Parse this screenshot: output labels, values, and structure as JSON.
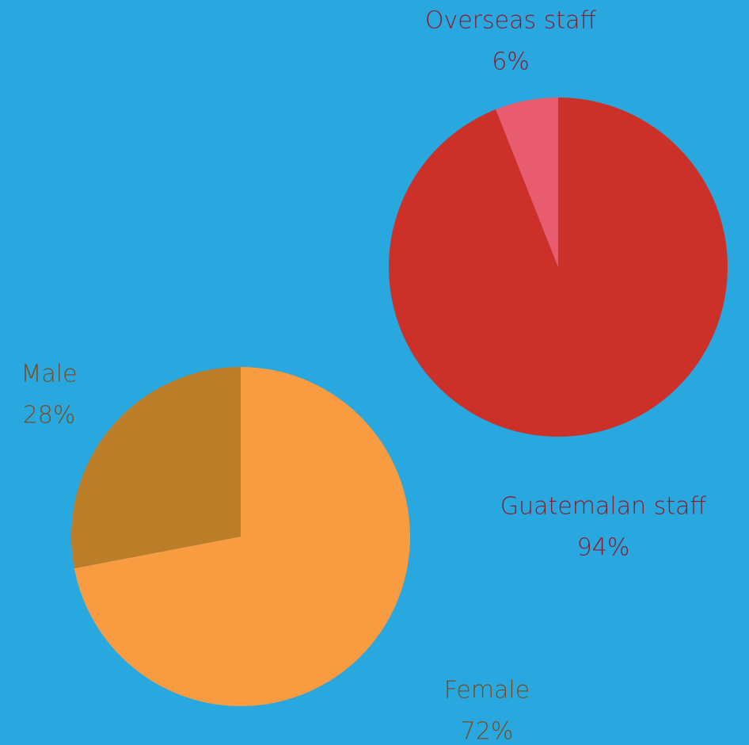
{
  "chart_data": [
    {
      "type": "pie",
      "categories": [
        "Guatemalan staff",
        "Overseas staff"
      ],
      "values": [
        94,
        6
      ],
      "value_labels": [
        "94%",
        "6%"
      ],
      "colors": [
        "#cc3129",
        "#e95b6e"
      ],
      "label_color": "#8b1a2a"
    },
    {
      "type": "pie",
      "categories": [
        "Female",
        "Male"
      ],
      "values": [
        72,
        28
      ],
      "value_labels": [
        "72%",
        "28%"
      ],
      "colors": [
        "#f99b40",
        "#bb7d28"
      ],
      "label_color": "#7a4a1e"
    }
  ]
}
